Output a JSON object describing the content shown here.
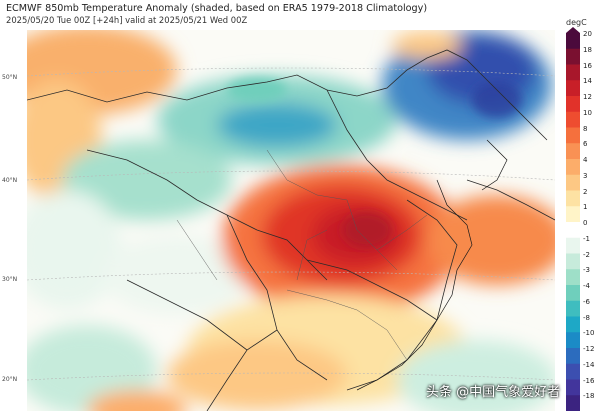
{
  "title": "ECMWF 850mb Temperature Anomaly (shaded, based on ERA5 1979-2018 Climatology)",
  "subtitle": "2025/05/20 Tue 00Z [+24h] valid at 2025/05/21 Wed 00Z",
  "colorbar": {
    "unit": "degC",
    "ticks": [
      "20",
      "18",
      "16",
      "14",
      "12",
      "10",
      "8",
      "6",
      "4",
      "3",
      "2",
      "1",
      "0",
      "-1",
      "-2",
      "-3",
      "-4",
      "-6",
      "-8",
      "-10",
      "-12",
      "-14",
      "-16",
      "-18"
    ],
    "colors": [
      "#4b0a3c",
      "#7a1030",
      "#a8172b",
      "#c81f28",
      "#e1322a",
      "#ee4d30",
      "#f5703d",
      "#f99154",
      "#fcad6a",
      "#fdc884",
      "#fde2a3",
      "#fff4c8",
      "#ffffff",
      "#e9f6ee",
      "#c7ebdb",
      "#9edfc8",
      "#6fcfbc",
      "#3fbdbf",
      "#1ea8c6",
      "#1b8bc6",
      "#2c6cbe",
      "#3c4fb0",
      "#42359c",
      "#3b2380"
    ]
  },
  "latitudes": [
    "50°N",
    "40°N",
    "30°N",
    "20°N"
  ],
  "watermark": "头条 @中国气象爱好者"
}
